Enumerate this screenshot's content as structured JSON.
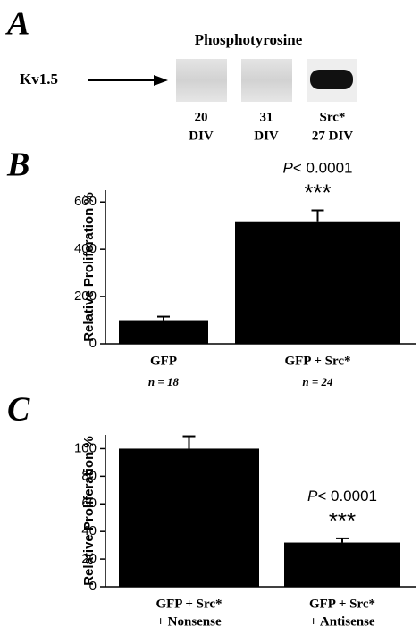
{
  "panel_a": {
    "letter": "A",
    "title": "Phosphotyrosine",
    "marker": "Kv1.5",
    "lanes": [
      [
        "20",
        "DIV"
      ],
      [
        "31",
        "DIV"
      ],
      [
        "Src*",
        "27 DIV"
      ]
    ]
  },
  "chart_data": [
    {
      "type": "bar",
      "letter": "B",
      "y_label": "Relative Proliferation %",
      "categories": [
        [
          "GFP"
        ],
        [
          "GFP + Src*"
        ]
      ],
      "n_labels": [
        "n = 18",
        "n = 24"
      ],
      "values": [
        100,
        515
      ],
      "errors": [
        15,
        50
      ],
      "color": "#000000",
      "ylim": [
        0,
        650
      ],
      "yticks": [
        0,
        200,
        400,
        600
      ],
      "annotation": {
        "index": 1,
        "symbol": "P",
        "text": "< 0.0001",
        "stars": "***"
      }
    },
    {
      "type": "bar",
      "letter": "C",
      "y_label": "Relative Proliferation %",
      "categories": [
        [
          "GFP + Src*",
          "+ Nonsense"
        ],
        [
          "GFP + Src*",
          "+ Antisense"
        ]
      ],
      "values": [
        100,
        32
      ],
      "errors": [
        9,
        3
      ],
      "color": "#000000",
      "ylim": [
        0,
        110
      ],
      "yticks": [
        0,
        20,
        40,
        60,
        80,
        100
      ],
      "annotation": {
        "index": 1,
        "symbol": "P",
        "text": "< 0.0001",
        "stars": "***"
      }
    }
  ]
}
